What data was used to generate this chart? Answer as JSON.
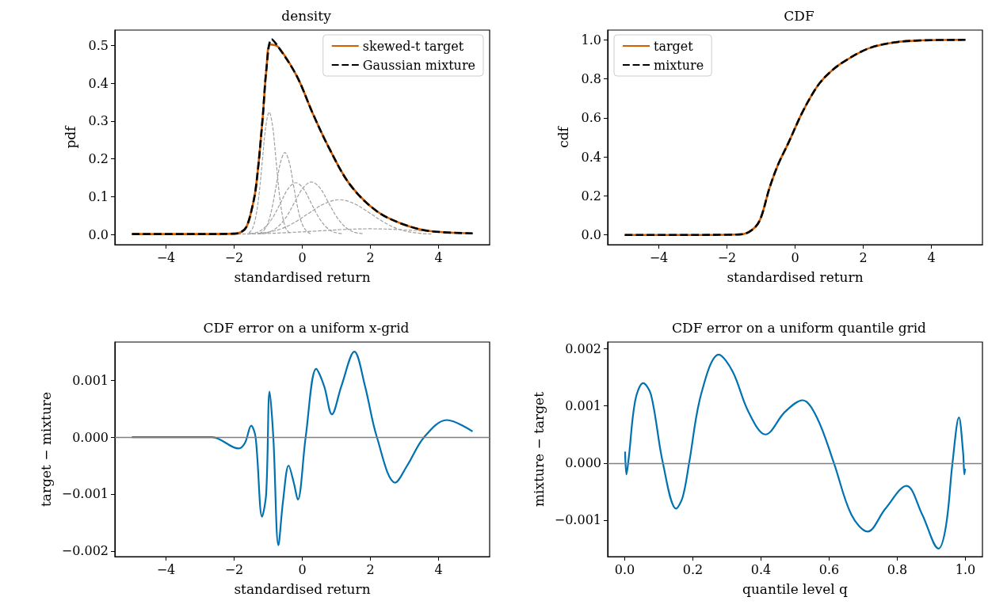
{
  "chart_data": [
    {
      "type": "line",
      "title": "density",
      "xlabel": "standardised return",
      "ylabel": "pdf",
      "legend": "top right",
      "xlim": [
        -5.5,
        5.5
      ],
      "ylim": [
        -0.027,
        0.541
      ],
      "xticks": [
        {
          "value": -4,
          "label": "−4"
        },
        {
          "value": -2,
          "label": "−2"
        },
        0,
        2,
        4
      ],
      "yticks": [
        {
          "value": 0,
          "label": "0.0"
        },
        0.1,
        0.2,
        0.3,
        0.4,
        0.5
      ],
      "series": [
        {
          "name": "skewed-t target",
          "color": "#d55e00",
          "line_style": "solid",
          "x": [
            -5,
            -3,
            -2,
            -1.8,
            -1.64,
            -1.5,
            -1.36,
            -1.17,
            -1.05,
            -0.94,
            -0.7,
            -0.16,
            0.31,
            0.78,
            1.4,
            2.18,
            2.96,
            3.74,
            5
          ],
          "values": [
            0.001,
            0.001,
            0.002,
            0.006,
            0.02,
            0.06,
            0.125,
            0.3,
            0.44,
            0.503,
            0.496,
            0.419,
            0.32,
            0.23,
            0.132,
            0.062,
            0.027,
            0.009,
            0.003
          ]
        },
        {
          "name": "Gaussian mixture",
          "color": "#000000",
          "line_style": "dashed",
          "x": [
            -5,
            -3,
            -2,
            -1.8,
            -1.64,
            -1.5,
            -1.36,
            -1.17,
            -1.05,
            -0.9,
            -0.7,
            -0.16,
            0.31,
            0.78,
            1.4,
            2.18,
            2.96,
            3.74,
            5
          ],
          "values": [
            0.001,
            0.001,
            0.002,
            0.006,
            0.02,
            0.06,
            0.125,
            0.3,
            0.44,
            0.517,
            0.496,
            0.419,
            0.32,
            0.23,
            0.132,
            0.062,
            0.027,
            0.009,
            0.003
          ]
        },
        {
          "color": "#a0a0a0",
          "line_style": "dashed",
          "x": [
            -1.57,
            -1.47,
            -1.37,
            -1.27,
            -1.17,
            -1.07,
            -0.97,
            -0.87,
            -0.77,
            -0.67,
            -0.57,
            -0.47,
            -0.37
          ],
          "values": [
            0.004,
            0.014,
            0.044,
            0.105,
            0.197,
            0.286,
            0.324,
            0.286,
            0.197,
            0.105,
            0.044,
            0.014,
            0.004
          ]
        },
        {
          "color": "#a0a0a0",
          "line_style": "dashed",
          "x": [
            -1.26,
            -1.135,
            -1.01,
            -0.885,
            -0.76,
            -0.635,
            -0.51,
            -0.385,
            -0.26,
            -0.135,
            -0.01,
            0.115,
            0.24
          ],
          "values": [
            0.002,
            0.01,
            0.029,
            0.071,
            0.132,
            0.192,
            0.217,
            0.192,
            0.132,
            0.071,
            0.029,
            0.01,
            0.002
          ]
        },
        {
          "color": "#a0a0a0",
          "line_style": "dashed",
          "x": [
            -1.54,
            -1.315,
            -1.09,
            -0.865,
            -0.64,
            -0.415,
            -0.19,
            0.035,
            0.26,
            0.485,
            0.71,
            0.935,
            1.16
          ],
          "values": [
            0.002,
            0.006,
            0.019,
            0.045,
            0.083,
            0.121,
            0.137,
            0.121,
            0.083,
            0.045,
            0.019,
            0.006,
            0.002
          ]
        },
        {
          "color": "#a0a0a0",
          "line_style": "dashed",
          "x": [
            -1.23,
            -0.98,
            -0.73,
            -0.48,
            -0.23,
            0.02,
            0.27,
            0.52,
            0.77,
            1.02,
            1.27,
            1.52,
            1.77
          ],
          "values": [
            0.002,
            0.006,
            0.019,
            0.045,
            0.084,
            0.123,
            0.139,
            0.123,
            0.084,
            0.045,
            0.019,
            0.006,
            0.002
          ]
        },
        {
          "color": "#a0a0a0",
          "line_style": "dashed",
          "x": [
            -1.61,
            -1.16,
            -0.71,
            -0.26,
            0.19,
            0.64,
            1.09,
            1.54,
            1.99,
            2.44,
            2.89,
            3.34,
            3.79
          ],
          "values": [
            0.001,
            0.004,
            0.012,
            0.03,
            0.056,
            0.081,
            0.092,
            0.081,
            0.056,
            0.03,
            0.012,
            0.004,
            0.001
          ]
        },
        {
          "color": "#a0a0a0",
          "line_style": "dashed",
          "x": [
            -2.8,
            -2,
            -1.2,
            -0.4,
            0.4,
            1.2,
            2,
            2.8,
            3.6,
            4.4,
            5
          ],
          "values": [
            0,
            0.001,
            0.002,
            0.005,
            0.009,
            0.013,
            0.015,
            0.013,
            0.009,
            0.005,
            0.003
          ]
        }
      ]
    },
    {
      "type": "line",
      "title": "CDF",
      "xlabel": "standardised return",
      "ylabel": "cdf",
      "legend": "top left",
      "xlim": [
        -5.5,
        5.5
      ],
      "ylim": [
        -0.05,
        1.05
      ],
      "xticks": [
        {
          "value": -4,
          "label": "−4"
        },
        {
          "value": -2,
          "label": "−2"
        },
        0,
        2,
        4
      ],
      "yticks": [
        {
          "value": 0,
          "label": "0.0"
        },
        {
          "value": 0.2,
          "label": "0.2"
        },
        {
          "value": 0.4,
          "label": "0.4"
        },
        {
          "value": 0.6,
          "label": "0.6"
        },
        {
          "value": 0.8,
          "label": "0.8"
        },
        {
          "value": 1,
          "label": "1.0"
        }
      ],
      "series": [
        {
          "name": "target",
          "color": "#d55e00",
          "line_style": "solid",
          "x": [
            -5,
            -3,
            -2,
            -1.53,
            -1.18,
            -1,
            -0.75,
            -0.5,
            -0.2,
            0.19,
            0.5,
            0.73,
            1,
            1.36,
            2.14,
            2.92,
            3.7,
            5
          ],
          "values": [
            0,
            0,
            0.001,
            0.004,
            0.038,
            0.09,
            0.241,
            0.36,
            0.47,
            0.62,
            0.72,
            0.78,
            0.83,
            0.88,
            0.955,
            0.987,
            0.997,
            1
          ]
        },
        {
          "name": "mixture",
          "color": "#000000",
          "line_style": "dashed",
          "x": [
            -5,
            -3,
            -2,
            -1.53,
            -1.18,
            -1,
            -0.75,
            -0.5,
            -0.2,
            0.19,
            0.5,
            0.73,
            1,
            1.36,
            2.14,
            2.92,
            3.7,
            5
          ],
          "values": [
            0,
            0,
            0.001,
            0.004,
            0.038,
            0.09,
            0.241,
            0.36,
            0.47,
            0.62,
            0.72,
            0.78,
            0.83,
            0.88,
            0.955,
            0.987,
            0.997,
            1
          ]
        }
      ]
    },
    {
      "type": "line",
      "title": "CDF error on a uniform x-grid",
      "xlabel": "standardised return",
      "ylabel": "target − mixture",
      "xlim": [
        -5.5,
        5.5
      ],
      "ylim": [
        -0.0021,
        0.00167
      ],
      "xticks": [
        {
          "value": -4,
          "label": "−4"
        },
        {
          "value": -2,
          "label": "−2"
        },
        0,
        2,
        4
      ],
      "yticks": [
        {
          "value": -0.002,
          "label": "−0.002"
        },
        {
          "value": -0.001,
          "label": "−0.001"
        },
        {
          "value": 0,
          "label": "0.000"
        },
        0.001
      ],
      "ref_lines": [
        {
          "axis": "y",
          "value": 0,
          "color": "#808080"
        }
      ],
      "series": [
        {
          "color": "#0072b2",
          "x": [
            -5,
            -2.65,
            -1.87,
            -1.68,
            -1.5,
            -1.37,
            -1.18,
            -1.06,
            -0.96,
            -0.85,
            -0.7,
            -0.56,
            -0.4,
            -0.25,
            -0.13,
            0.1,
            0.41,
            0.64,
            0.87,
            1.15,
            1.53,
            1.84,
            2.19,
            2.73,
            3.08,
            3.58,
            4.24,
            5
          ],
          "values": [
            0,
            0,
            -0.0002,
            -0.0001,
            0.0002,
            0,
            -0.0014,
            -0.001,
            0.0008,
            0,
            -0.0019,
            -0.0011,
            -0.0005,
            -0.0008,
            -0.0011,
            0,
            0.0012,
            0.0009,
            0.0004,
            0.0009,
            0.0015,
            0.0009,
            0,
            -0.0008,
            -0.0005,
            0,
            0.0003,
            0.0001
          ]
        }
      ]
    },
    {
      "type": "line",
      "title": "CDF error on a uniform quantile grid",
      "xlabel": "quantile level q",
      "ylabel": "mixture − target",
      "xlim": [
        -0.05,
        1.05
      ],
      "ylim": [
        -0.00164,
        0.00212
      ],
      "xticks": [
        {
          "value": 0,
          "label": "0.0"
        },
        {
          "value": 0.2,
          "label": "0.2"
        },
        {
          "value": 0.4,
          "label": "0.4"
        },
        {
          "value": 0.6,
          "label": "0.6"
        },
        {
          "value": 0.8,
          "label": "0.8"
        },
        {
          "value": 1,
          "label": "1.0"
        }
      ],
      "yticks": [
        {
          "value": -0.001,
          "label": "−0.001"
        },
        {
          "value": 0,
          "label": "0.000"
        },
        0.001,
        0.002
      ],
      "ref_lines": [
        {
          "axis": "y",
          "value": 0,
          "color": "#808080"
        }
      ],
      "series": [
        {
          "color": "#0072b2",
          "x": [
            0.001,
            0.005,
            0.012,
            0.031,
            0.054,
            0.077,
            0.112,
            0.151,
            0.17,
            0.189,
            0.224,
            0.276,
            0.317,
            0.363,
            0.413,
            0.471,
            0.522,
            0.564,
            0.614,
            0.665,
            0.713,
            0.765,
            0.827,
            0.873,
            0.921,
            0.943,
            0.962,
            0.981,
            0.993,
            0.997,
            0.999
          ],
          "values": [
            0.0002,
            -0.0002,
            0.0001,
            0.0011,
            0.0014,
            0.0012,
            0,
            -0.0008,
            -0.0006,
            0,
            0.0012,
            0.0019,
            0.0016,
            0.0009,
            0.0005,
            0.0009,
            0.0011,
            0.0008,
            0,
            -0.0009,
            -0.0012,
            -0.0008,
            -0.0004,
            -0.0009,
            -0.0015,
            -0.0011,
            0,
            0.0008,
            0.0002,
            -0.0002,
            -0.0001
          ]
        }
      ]
    }
  ]
}
